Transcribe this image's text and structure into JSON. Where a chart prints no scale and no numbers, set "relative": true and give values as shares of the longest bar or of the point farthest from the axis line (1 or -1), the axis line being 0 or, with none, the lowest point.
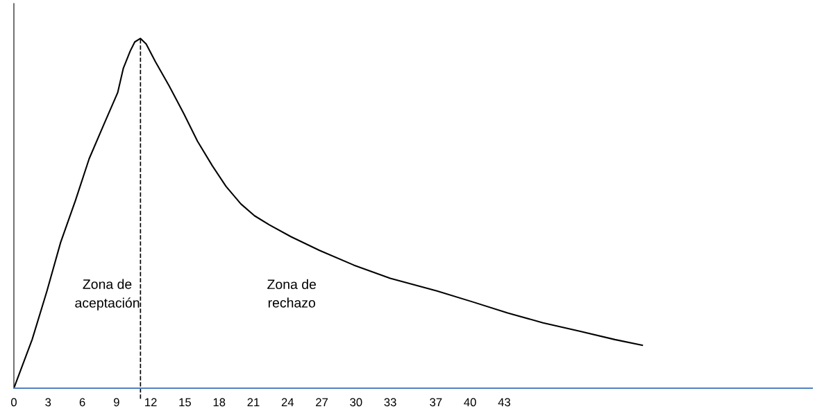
{
  "chart_data": {
    "type": "line",
    "relative": true,
    "x": [
      0,
      1.6,
      2.9,
      4.1,
      5.4,
      6.6,
      7.9,
      9.1,
      9.6,
      10.2,
      10.6,
      11.1,
      11.6,
      12.4,
      13.6,
      14.9,
      16.1,
      17.4,
      18.6,
      19.9,
      21.1,
      22.4,
      24.3,
      26.8,
      29.8,
      33,
      37.1,
      40.2,
      43.3,
      46.4,
      49.6,
      52.7,
      55.1
    ],
    "series": [
      {
        "color": "#000000",
        "values": [
          0,
          0.139,
          0.278,
          0.417,
          0.537,
          0.656,
          0.755,
          0.845,
          0.915,
          0.964,
          0.99,
          1,
          0.984,
          0.934,
          0.865,
          0.785,
          0.706,
          0.636,
          0.577,
          0.527,
          0.493,
          0.467,
          0.433,
          0.394,
          0.352,
          0.314,
          0.278,
          0.247,
          0.215,
          0.187,
          0.163,
          0.139,
          0.123
        ]
      }
    ],
    "xlim": [
      0,
      70
    ],
    "xticks": [
      0,
      3,
      6,
      9,
      12,
      15,
      18,
      21,
      24,
      27,
      30,
      33,
      37,
      40,
      43
    ],
    "tick_labels": "x",
    "grid": false,
    "legend": false,
    "marker": "none",
    "line_style": "solid",
    "ref_lines": [
      {
        "axis": "x",
        "value": 11.1,
        "color": "#000000",
        "line_style": "dashed"
      }
    ],
    "annotations": [
      "Zona de\naceptación",
      "Zona de\nrechazo"
    ]
  }
}
